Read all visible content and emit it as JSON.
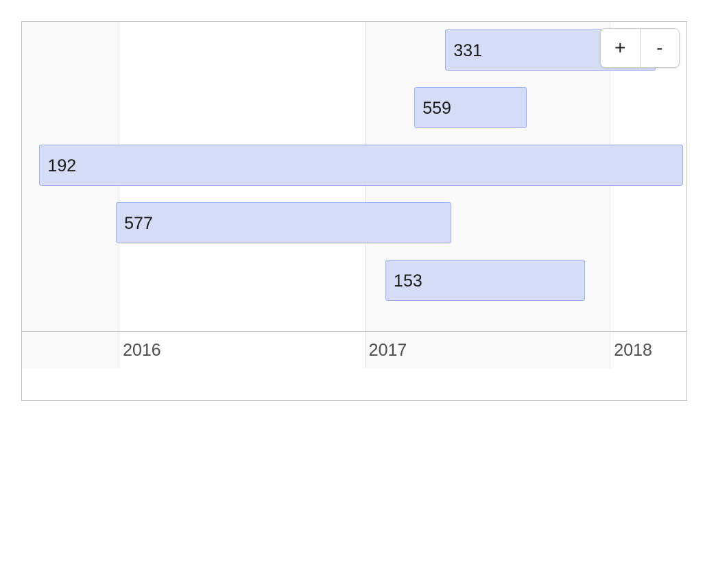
{
  "chart_data": {
    "type": "timeline",
    "title": "",
    "xlabel": "",
    "ylabel": "",
    "x_range": [
      "2015-08-10",
      "2018-04-25"
    ],
    "x_tick_labels": [
      "2016",
      "2017",
      "2018"
    ],
    "x_ticks": [
      "2016-01-01",
      "2017-01-01",
      "2018-01-01"
    ],
    "grid": true,
    "legend": "none",
    "items": [
      {
        "label": "331",
        "start": "2017-05-01",
        "end": "2018-03-10"
      },
      {
        "label": "559",
        "start": "2017-03-16",
        "end": "2017-08-30"
      },
      {
        "label": "192",
        "start": "2015-09-05",
        "end": "2018-04-20"
      },
      {
        "label": "577",
        "start": "2015-12-28",
        "end": "2017-05-10"
      },
      {
        "label": "153",
        "start": "2017-02-01",
        "end": "2017-11-25"
      }
    ],
    "colors": {
      "item_fill": "#d5ddf6",
      "item_border": "#97b0f8",
      "weekend_band": "#fafafa"
    }
  },
  "controls": {
    "zoom_in_label": "+",
    "zoom_out_label": "-"
  }
}
